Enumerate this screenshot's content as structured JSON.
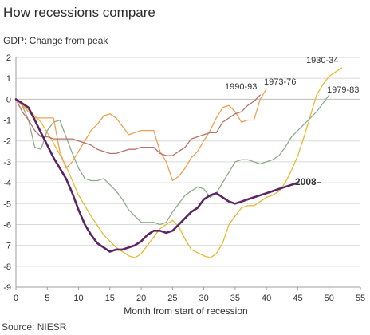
{
  "title": "How recessions compare",
  "subtitle": "GDP: Change from peak",
  "source": "Source: NIESR",
  "chart_data": {
    "type": "line",
    "title": "How recessions compare",
    "subtitle": "GDP: Change from peak",
    "xlabel": "Month from start of recession",
    "ylabel": "",
    "xlim": [
      0,
      55
    ],
    "ylim": [
      -9,
      2
    ],
    "x_ticks": [
      0,
      5,
      10,
      15,
      20,
      25,
      30,
      35,
      40,
      45,
      50,
      55
    ],
    "y_ticks": [
      2,
      1,
      0,
      -1,
      -2,
      -3,
      -4,
      -5,
      -6,
      -7,
      -8,
      -9
    ],
    "grid": "horizontal",
    "source": "Source: NIESR",
    "series": [
      {
        "name": "1930-34",
        "color": "#e8b931",
        "width": 1.3,
        "points": [
          [
            0,
            0
          ],
          [
            2,
            -0.5
          ],
          [
            4,
            -1.1
          ],
          [
            6,
            -2.1
          ],
          [
            8,
            -3.2
          ],
          [
            10,
            -4.6
          ],
          [
            12,
            -5.6
          ],
          [
            14,
            -6.5
          ],
          [
            16,
            -7.1
          ],
          [
            18,
            -7.5
          ],
          [
            19,
            -7.6
          ],
          [
            20,
            -7.4
          ],
          [
            21,
            -7.0
          ],
          [
            22,
            -6.6
          ],
          [
            23,
            -6.2
          ],
          [
            24,
            -6.0
          ],
          [
            25,
            -5.8
          ],
          [
            26,
            -6.1
          ],
          [
            27,
            -6.7
          ],
          [
            28,
            -7.2
          ],
          [
            30,
            -7.5
          ],
          [
            31,
            -7.6
          ],
          [
            32,
            -7.4
          ],
          [
            33,
            -6.9
          ],
          [
            34,
            -6.0
          ],
          [
            35,
            -5.6
          ],
          [
            36,
            -5.2
          ],
          [
            37,
            -5.1
          ],
          [
            38,
            -5.1
          ],
          [
            39,
            -4.9
          ],
          [
            40,
            -4.7
          ],
          [
            41,
            -4.6
          ],
          [
            42,
            -4.4
          ],
          [
            43,
            -4.0
          ],
          [
            44,
            -3.4
          ],
          [
            45,
            -2.7
          ],
          [
            46,
            -1.8
          ],
          [
            47,
            -0.8
          ],
          [
            48,
            0.2
          ],
          [
            49,
            0.7
          ],
          [
            50,
            1.1
          ],
          [
            51,
            1.3
          ],
          [
            52,
            1.5
          ]
        ],
        "label_text": "1930-34"
      },
      {
        "name": "1979-83",
        "color": "#8fab8c",
        "width": 1.3,
        "points": [
          [
            0,
            0
          ],
          [
            1,
            -0.3
          ],
          [
            2,
            -1.0
          ],
          [
            3,
            -2.3
          ],
          [
            4,
            -2.4
          ],
          [
            5,
            -1.5
          ],
          [
            6,
            -1.1
          ],
          [
            7,
            -1.0
          ],
          [
            8,
            -1.8
          ],
          [
            9,
            -2.6
          ],
          [
            10,
            -3.3
          ],
          [
            11,
            -3.8
          ],
          [
            12,
            -3.9
          ],
          [
            13,
            -3.9
          ],
          [
            14,
            -3.8
          ],
          [
            15,
            -4.1
          ],
          [
            16,
            -4.4
          ],
          [
            17,
            -4.8
          ],
          [
            18,
            -5.3
          ],
          [
            19,
            -5.6
          ],
          [
            20,
            -5.9
          ],
          [
            21,
            -5.9
          ],
          [
            22,
            -5.9
          ],
          [
            23,
            -6.0
          ],
          [
            24,
            -5.9
          ],
          [
            25,
            -5.4
          ],
          [
            26,
            -5.0
          ],
          [
            27,
            -4.6
          ],
          [
            28,
            -4.4
          ],
          [
            29,
            -4.2
          ],
          [
            30,
            -4.3
          ],
          [
            31,
            -4.7
          ],
          [
            32,
            -4.5
          ],
          [
            33,
            -4.0
          ],
          [
            34,
            -3.5
          ],
          [
            35,
            -3.0
          ],
          [
            36,
            -2.9
          ],
          [
            37,
            -2.9
          ],
          [
            38,
            -3.0
          ],
          [
            39,
            -3.1
          ],
          [
            40,
            -3.0
          ],
          [
            41,
            -2.9
          ],
          [
            42,
            -2.7
          ],
          [
            43,
            -2.3
          ],
          [
            44,
            -1.8
          ],
          [
            45,
            -1.5
          ],
          [
            46,
            -1.2
          ],
          [
            47,
            -0.9
          ],
          [
            48,
            -0.6
          ],
          [
            49,
            -0.2
          ],
          [
            50,
            0.2
          ]
        ],
        "label_text": "1979-83"
      },
      {
        "name": "1973-76",
        "color": "#f0a050",
        "width": 1.3,
        "points": [
          [
            0,
            0
          ],
          [
            1,
            -0.3
          ],
          [
            2,
            -0.6
          ],
          [
            3,
            -0.9
          ],
          [
            4,
            -0.9
          ],
          [
            5,
            -0.9
          ],
          [
            6,
            -0.9
          ],
          [
            7,
            -2.5
          ],
          [
            8,
            -3.3
          ],
          [
            9,
            -3.0
          ],
          [
            10,
            -2.5
          ],
          [
            11,
            -2.0
          ],
          [
            12,
            -1.5
          ],
          [
            13,
            -1.2
          ],
          [
            14,
            -0.8
          ],
          [
            15,
            -0.7
          ],
          [
            16,
            -0.9
          ],
          [
            17,
            -1.3
          ],
          [
            18,
            -1.7
          ],
          [
            19,
            -1.6
          ],
          [
            20,
            -1.5
          ],
          [
            21,
            -1.5
          ],
          [
            22,
            -1.5
          ],
          [
            23,
            -2.5
          ],
          [
            24,
            -3.0
          ],
          [
            25,
            -3.9
          ],
          [
            26,
            -3.7
          ],
          [
            27,
            -3.3
          ],
          [
            28,
            -2.8
          ],
          [
            29,
            -2.5
          ],
          [
            30,
            -2.0
          ],
          [
            31,
            -1.5
          ],
          [
            32,
            -0.9
          ],
          [
            33,
            -0.4
          ],
          [
            34,
            -0.3
          ],
          [
            35,
            -0.6
          ],
          [
            36,
            -1.1
          ],
          [
            37,
            -1.0
          ],
          [
            38,
            -1.0
          ],
          [
            39,
            0.0
          ],
          [
            40,
            0.5
          ]
        ],
        "label_text": "1973-76"
      },
      {
        "name": "1990-93",
        "color": "#b8736c",
        "width": 1.3,
        "points": [
          [
            0,
            0
          ],
          [
            1,
            -0.6
          ],
          [
            2,
            -1.0
          ],
          [
            3,
            -1.5
          ],
          [
            4,
            -1.8
          ],
          [
            5,
            -1.8
          ],
          [
            6,
            -1.9
          ],
          [
            7,
            -1.9
          ],
          [
            8,
            -1.9
          ],
          [
            9,
            -1.9
          ],
          [
            10,
            -2.0
          ],
          [
            11,
            -2.1
          ],
          [
            12,
            -2.2
          ],
          [
            13,
            -2.4
          ],
          [
            14,
            -2.5
          ],
          [
            15,
            -2.6
          ],
          [
            16,
            -2.6
          ],
          [
            17,
            -2.5
          ],
          [
            18,
            -2.4
          ],
          [
            19,
            -2.4
          ],
          [
            20,
            -2.3
          ],
          [
            21,
            -2.3
          ],
          [
            22,
            -2.3
          ],
          [
            23,
            -2.6
          ],
          [
            24,
            -2.7
          ],
          [
            25,
            -2.7
          ],
          [
            26,
            -2.5
          ],
          [
            27,
            -2.3
          ],
          [
            28,
            -1.9
          ],
          [
            29,
            -1.8
          ],
          [
            30,
            -1.7
          ],
          [
            31,
            -1.6
          ],
          [
            32,
            -1.6
          ],
          [
            33,
            -1.1
          ],
          [
            34,
            -0.9
          ],
          [
            35,
            -0.7
          ],
          [
            36,
            -0.6
          ],
          [
            37,
            -0.3
          ],
          [
            38,
            -0.1
          ],
          [
            39,
            0.2
          ]
        ],
        "label_text": "1990-93"
      },
      {
        "name": "2008-",
        "color": "#5b2466",
        "width": 2.6,
        "points": [
          [
            0,
            0
          ],
          [
            1,
            -0.2
          ],
          [
            2,
            -0.4
          ],
          [
            3,
            -1.0
          ],
          [
            4,
            -1.6
          ],
          [
            5,
            -2.2
          ],
          [
            6,
            -2.8
          ],
          [
            7,
            -3.3
          ],
          [
            8,
            -3.8
          ],
          [
            9,
            -4.5
          ],
          [
            10,
            -5.3
          ],
          [
            11,
            -6.0
          ],
          [
            12,
            -6.5
          ],
          [
            13,
            -6.9
          ],
          [
            14,
            -7.1
          ],
          [
            15,
            -7.3
          ],
          [
            16,
            -7.2
          ],
          [
            17,
            -7.2
          ],
          [
            18,
            -7.1
          ],
          [
            19,
            -7.0
          ],
          [
            20,
            -6.8
          ],
          [
            21,
            -6.5
          ],
          [
            22,
            -6.3
          ],
          [
            23,
            -6.3
          ],
          [
            24,
            -6.4
          ],
          [
            25,
            -6.3
          ],
          [
            26,
            -6.0
          ],
          [
            27,
            -5.7
          ],
          [
            28,
            -5.4
          ],
          [
            29,
            -5.2
          ],
          [
            30,
            -4.8
          ],
          [
            31,
            -4.6
          ],
          [
            32,
            -4.5
          ],
          [
            33,
            -4.7
          ],
          [
            34,
            -4.9
          ],
          [
            35,
            -5.0
          ],
          [
            36,
            -4.9
          ],
          [
            37,
            -4.8
          ],
          [
            38,
            -4.7
          ],
          [
            39,
            -4.6
          ],
          [
            40,
            -4.5
          ],
          [
            41,
            -4.4
          ],
          [
            42,
            -4.3
          ],
          [
            43,
            -4.2
          ],
          [
            44,
            -4.1
          ],
          [
            45,
            -4.0
          ]
        ],
        "label_text": "2008–"
      }
    ]
  }
}
